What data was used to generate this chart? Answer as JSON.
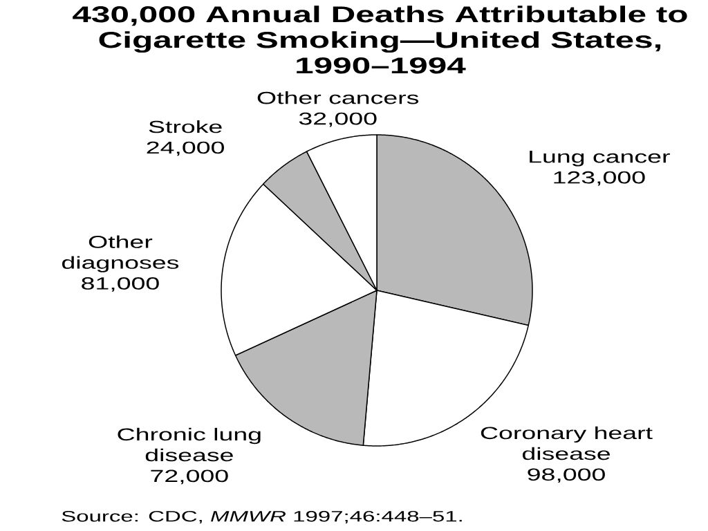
{
  "chart_data": {
    "type": "pie",
    "title": "430,000 Annual Deaths Attributable to Cigarette Smoking—United States, 1990–1994",
    "categories": [
      "Lung cancer",
      "Coronary heart disease",
      "Chronic lung disease",
      "Other diagnoses",
      "Stroke",
      "Other cancers"
    ],
    "values": [
      123000,
      98000,
      72000,
      81000,
      24000,
      32000
    ],
    "colors": [
      "#b9b9b9",
      "#ffffff",
      "#b9b9b9",
      "#ffffff",
      "#b9b9b9",
      "#ffffff"
    ],
    "value_labels": [
      "123,000",
      "98,000",
      "72,000",
      "81,000",
      "24,000",
      "32,000"
    ],
    "annotations": [
      "Source: CDC, *MMWR* 1997;46:448–51."
    ]
  }
}
